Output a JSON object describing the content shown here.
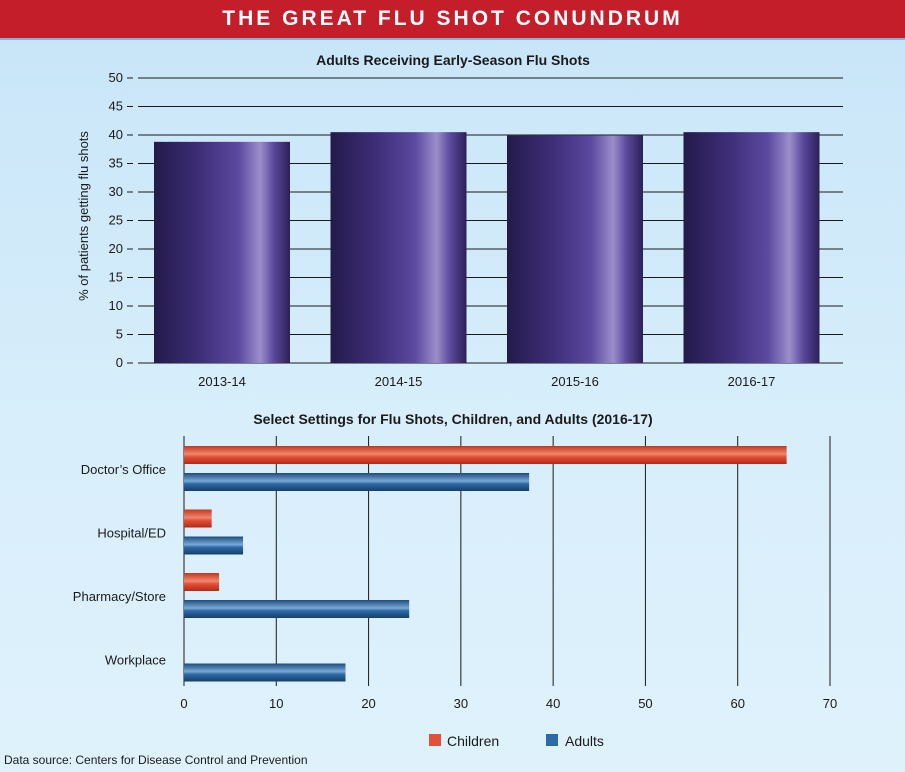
{
  "header": {
    "title": "THE GREAT FLU SHOT CONUNDRUM"
  },
  "source": "Data source: Centers for Disease Control and Prevention",
  "chart_data": [
    {
      "type": "bar",
      "title": "Adults Receiving Early-Season Flu Shots",
      "ylabel": "% of patients getting flu shots",
      "xlabel": "",
      "categories": [
        "2013-14",
        "2014-15",
        "2015-16",
        "2016-17"
      ],
      "values": [
        38.8,
        40.5,
        39.9,
        40.5
      ],
      "ylim": [
        0,
        50
      ],
      "yticks": [
        0,
        5,
        10,
        15,
        20,
        25,
        30,
        35,
        40,
        45,
        50
      ],
      "grid": true,
      "color": "#4b3a8c"
    },
    {
      "type": "bar",
      "orientation": "horizontal",
      "title": "Select Settings for Flu Shots, Children, and Adults (2016-17)",
      "categories": [
        "Doctor’s Office",
        "Hospital/ED",
        "Pharmacy/Store",
        "Workplace"
      ],
      "series": [
        {
          "name": "Children",
          "values": [
            65.3,
            3.0,
            3.8,
            null
          ],
          "color": "#e2513a"
        },
        {
          "name": "Adults",
          "values": [
            37.4,
            6.4,
            24.4,
            17.5
          ],
          "color": "#2e6aa6"
        }
      ],
      "xlim": [
        0,
        70
      ],
      "xticks": [
        0,
        10,
        20,
        30,
        40,
        50,
        60,
        70
      ],
      "grid": true,
      "legend_position": "bottom"
    }
  ]
}
